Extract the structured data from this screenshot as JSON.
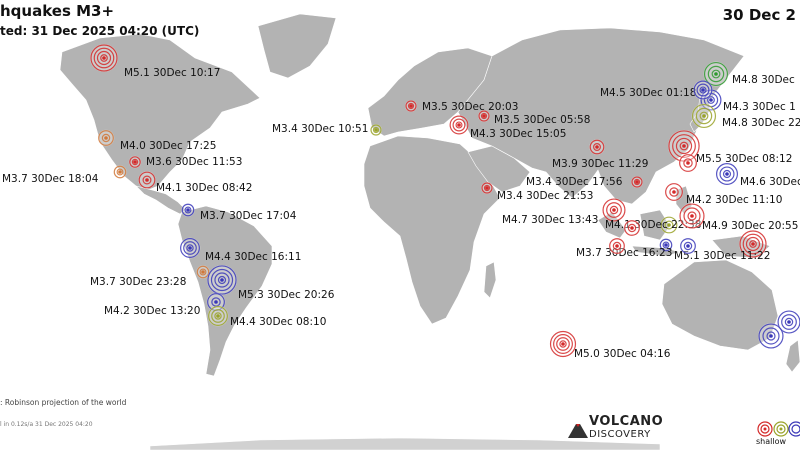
{
  "header": {
    "title": "hquakes M3+",
    "updated": "ted: 31 Dec 2025 04:20 (UTC)",
    "date": "30 Dec 2"
  },
  "footer": {
    "projection": ": Robinson projection of the world",
    "generated": "l in 0.12s/a 31 Dec 2025 04:20",
    "logo_top": "VOLCANO",
    "logo_bottom": "DISCOVERY",
    "legend_label": "shallow"
  },
  "colors": {
    "land": "#b3b3b3",
    "red": "#d42a2a",
    "blue": "#3a38b8",
    "green": "#2f9a2f",
    "olive": "#9aa32a",
    "orange": "#d0783a"
  },
  "quakes": [
    {
      "label": "M5.1 30Dec 10:17",
      "color": "red",
      "mag": 5.1
    },
    {
      "label": "M4.0 30Dec 17:25",
      "color": "orange",
      "mag": 4.0
    },
    {
      "label": "M3.6 30Dec 11:53",
      "color": "red",
      "mag": 3.6
    },
    {
      "label": "M3.7 30Dec 18:04",
      "color": "orange",
      "mag": 3.7
    },
    {
      "label": "M4.1 30Dec 08:42",
      "color": "red",
      "mag": 4.1
    },
    {
      "label": "M3.7 30Dec 17:04",
      "color": "blue",
      "mag": 3.7
    },
    {
      "label": "M4.4 30Dec 16:11",
      "color": "blue",
      "mag": 4.4
    },
    {
      "label": "M3.7 30Dec 23:28",
      "color": "orange",
      "mag": 3.7
    },
    {
      "label": "M5.3 30Dec 20:26",
      "color": "blue",
      "mag": 5.3
    },
    {
      "label": "M4.2 30Dec 13:20",
      "color": "blue",
      "mag": 4.2
    },
    {
      "label": "M4.4 30Dec 08:10",
      "color": "olive",
      "mag": 4.4
    },
    {
      "label": "M3.4 30Dec 10:51",
      "color": "olive",
      "mag": 3.4
    },
    {
      "label": "M3.5 30Dec 20:03",
      "color": "red",
      "mag": 3.5
    },
    {
      "label": "M3.5 30Dec 05:58",
      "color": "red",
      "mag": 3.5
    },
    {
      "label": "M4.3 30Dec 15:05",
      "color": "red",
      "mag": 4.3
    },
    {
      "label": "M3.9 30Dec 11:29",
      "color": "red",
      "mag": 3.9
    },
    {
      "label": "M3.4 30Dec 17:56",
      "color": "red",
      "mag": 3.4
    },
    {
      "label": "M3.4 30Dec 21:53",
      "color": "red",
      "mag": 3.4
    },
    {
      "label": "M4.7 30Dec 13:43",
      "color": "red",
      "mag": 4.7
    },
    {
      "label": "M4.1 30Dec 22:38",
      "color": "olive",
      "mag": 4.1
    },
    {
      "label": "M3.7 30Dec 16:23",
      "color": "blue",
      "mag": 3.7
    },
    {
      "label": "M5.1 30Dec 11:22",
      "color": "red",
      "mag": 5.1
    },
    {
      "label": "M4.9 30Dec 20:55",
      "color": "red",
      "mag": 4.9
    },
    {
      "label": "M4.2 30Dec 11:10",
      "color": "red",
      "mag": 4.2
    },
    {
      "label": "M4.6 30Dec",
      "color": "blue",
      "mag": 4.6
    },
    {
      "label": "M5.5 30Dec 08:12",
      "color": "red",
      "mag": 5.5
    },
    {
      "label": "M4.5 30Dec 01:18",
      "color": "blue",
      "mag": 4.5
    },
    {
      "label": "M4.8 30Dec",
      "color": "green",
      "mag": 4.8
    },
    {
      "label": "M4.3 30Dec 1",
      "color": "blue",
      "mag": 4.3
    },
    {
      "label": "M4.8 30Dec 22",
      "color": "olive",
      "mag": 4.8
    },
    {
      "label": "M5.0 30Dec 04:16",
      "color": "red",
      "mag": 5.0
    },
    {
      "label": "",
      "color": "blue",
      "mag": 4.7
    },
    {
      "label": "",
      "color": "blue",
      "mag": 4.9
    },
    {
      "label": "",
      "color": "red",
      "mag": 4.0
    },
    {
      "label": "",
      "color": "blue",
      "mag": 4.0
    },
    {
      "label": "",
      "color": "red",
      "mag": 4.0
    },
    {
      "label": "",
      "color": "red",
      "mag": 4.2
    }
  ]
}
